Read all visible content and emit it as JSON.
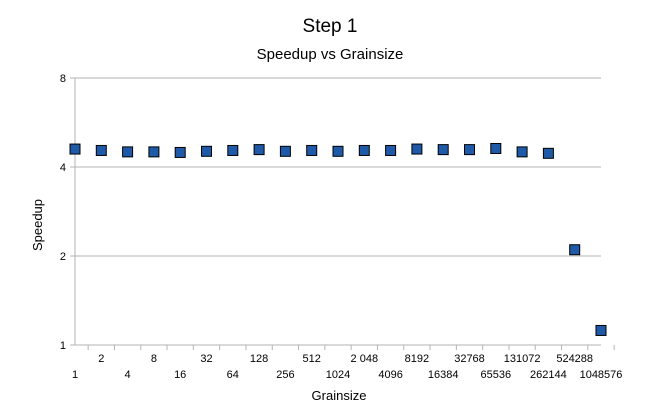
{
  "chart_data": {
    "type": "scatter",
    "title": "Step 1",
    "subtitle": "Speedup vs Grainsize",
    "xlabel": "Grainsize",
    "ylabel": "Speedup",
    "yscale": "log2",
    "ylim": [
      1,
      8
    ],
    "yticks": [
      "1",
      "2",
      "4",
      "8"
    ],
    "grid": "horizontal",
    "legend": "none",
    "marker_color": "#1f5aa8",
    "marker_edge_color": "#000000",
    "categories": [
      "1",
      "2",
      "4",
      "8",
      "16",
      "32",
      "64",
      "128",
      "256",
      "512",
      "1024",
      "2048",
      "4096",
      "8192",
      "16384",
      "32768",
      "65536",
      "131072",
      "262144",
      "524288",
      "1048576"
    ],
    "category_labels": [
      "1",
      "2",
      "4",
      "8",
      "16",
      "32",
      "64",
      "128",
      "256",
      "512",
      "1024",
      "2 048",
      "4096",
      "8192",
      "16384",
      "32768",
      "65536",
      "131072",
      "262144",
      "524288",
      "1048576"
    ],
    "series": [
      {
        "values": [
          4.6,
          4.55,
          4.5,
          4.5,
          4.48,
          4.52,
          4.55,
          4.58,
          4.52,
          4.55,
          4.52,
          4.55,
          4.55,
          4.6,
          4.58,
          4.58,
          4.62,
          4.5,
          4.45,
          2.1,
          1.12
        ]
      }
    ]
  }
}
